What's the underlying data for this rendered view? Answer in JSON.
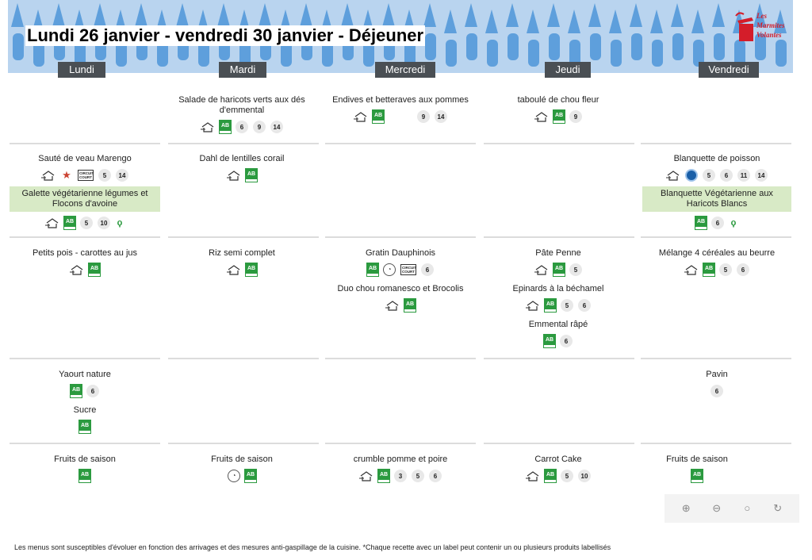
{
  "title": "Lundi 26 janvier - vendredi 30 janvier  - Déjeuner",
  "logo": {
    "line1": "Les",
    "line2": "Marmites",
    "line3": "Volantes"
  },
  "days": [
    "Lundi",
    "Mardi",
    "Mercredi",
    "Jeudi",
    "Vendredi"
  ],
  "rows": {
    "entree": {
      "mardi": {
        "dish": "Salade de haricots verts aux dés d'emmental",
        "allergens": [
          "6",
          "9",
          "14"
        ]
      },
      "mercredi": {
        "dish": "Endives et betteraves aux pommes",
        "allergens": [
          "9",
          "14"
        ]
      },
      "jeudi": {
        "dish": "taboulé de chou fleur",
        "allergens": [
          "9"
        ]
      }
    },
    "plat": {
      "lundi": {
        "dish": "Sauté de veau Marengo",
        "circuit": "CIRCUIT COURT",
        "allergens": [
          "5",
          "14"
        ]
      },
      "lundi_veg": {
        "dish": "Galette végétarienne légumes et Flocons d'avoine",
        "allergens": [
          "5",
          "10"
        ]
      },
      "mardi": {
        "dish": "Dahl de lentilles corail"
      },
      "vendredi": {
        "dish": "Blanquette de poisson",
        "allergens": [
          "5",
          "6",
          "11",
          "14"
        ]
      },
      "vendredi_veg": {
        "dish": "Blanquette Végétarienne aux Haricots Blancs",
        "allergens": [
          "6"
        ]
      }
    },
    "accomp": {
      "lundi": {
        "dish": "Petits pois - carottes au jus"
      },
      "mardi": {
        "dish": "Riz semi complet"
      },
      "mercredi": {
        "dish": "Gratin Dauphinois",
        "circuit": "CIRCUIT COURT",
        "allergens": [
          "6"
        ]
      },
      "mercredi2": {
        "dish": "Duo chou romanesco et Brocolis"
      },
      "jeudi": {
        "dish": "Pâte Penne",
        "allergens": [
          "5"
        ]
      },
      "jeudi2": {
        "dish": "Epinards à la béchamel",
        "allergens": [
          "5",
          "6"
        ]
      },
      "jeudi3": {
        "dish": "Emmental râpé",
        "allergens": [
          "6"
        ]
      },
      "vendredi": {
        "dish": "Mélange 4 céréales au beurre",
        "allergens": [
          "5",
          "6"
        ]
      }
    },
    "laitage": {
      "lundi": {
        "dish": "Yaourt nature",
        "allergens": [
          "6"
        ]
      },
      "lundi2": {
        "dish": "Sucre"
      },
      "vendredi": {
        "dish": "Pavin",
        "allergens": [
          "6"
        ]
      }
    },
    "dessert": {
      "lundi": {
        "dish": "Fruits de saison"
      },
      "mardi": {
        "dish": "Fruits de saison"
      },
      "mercredi": {
        "dish": "crumble pomme et poire",
        "allergens": [
          "3",
          "5",
          "6"
        ]
      },
      "jeudi": {
        "dish": "Carrot Cake",
        "allergens": [
          "5",
          "10"
        ]
      },
      "vendredi": {
        "dish": "Fruits de saison"
      }
    }
  },
  "labels": {
    "ab": "AB"
  },
  "footer": "Les menus sont susceptibles d'évoluer en fonction des arrivages et des mesures anti-gaspillage de la cuisine. *Chaque recette avec un label peut contenir un ou plusieurs produits labellisés",
  "colors": {
    "banner": "#b9d4ef",
    "header": "#4a4f54",
    "veg_highlight": "#d8eac6",
    "ab_green": "#2b9a3f"
  },
  "zoom": {
    "in": "zoom-in-icon",
    "out": "zoom-out-icon",
    "search": "search-icon",
    "rotate": "rotate-icon"
  }
}
